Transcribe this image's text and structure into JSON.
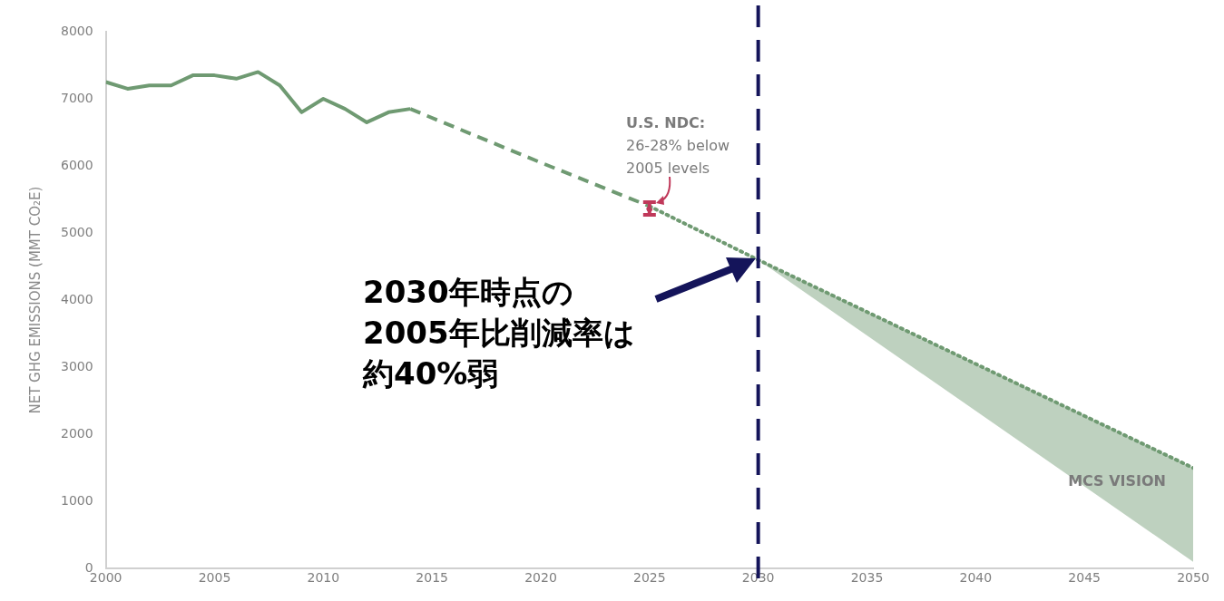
{
  "chart_data": {
    "type": "line",
    "ylabel": "NET GHG EMISSIONS (MMT CO₂E)",
    "xlim": [
      2000,
      2050
    ],
    "ylim": [
      0,
      8000
    ],
    "xticks": [
      2000,
      2005,
      2010,
      2015,
      2020,
      2025,
      2030,
      2035,
      2040,
      2045,
      2050
    ],
    "yticks": [
      0,
      1000,
      2000,
      3000,
      4000,
      5000,
      6000,
      7000,
      8000
    ],
    "grid": false,
    "legend": false,
    "series": [
      {
        "color": "#6f9a72",
        "line_style": "solid",
        "x": [
          2000,
          2001,
          2002,
          2003,
          2004,
          2005,
          2006,
          2007,
          2008,
          2009,
          2010,
          2011,
          2012,
          2013,
          2014
        ],
        "values": [
          7250,
          7150,
          7200,
          7200,
          7350,
          7350,
          7300,
          7400,
          7200,
          6800,
          7000,
          6850,
          6650,
          6800,
          6850
        ]
      },
      {
        "color": "#6f9a72",
        "line_style": "dashed",
        "x": [
          2014,
          2020,
          2025
        ],
        "values": [
          6850,
          6050,
          5400
        ]
      },
      {
        "name": "MCS VISION",
        "color": "#6f9a72",
        "line_style": "dotted",
        "x": [
          2025,
          2030,
          2050
        ],
        "values": [
          5400,
          4600,
          1500
        ],
        "lower": [
          5400,
          4600,
          100
        ],
        "upper": [
          5400,
          4600,
          1500
        ]
      },
      {
        "type": "scatter",
        "color": "#c0395a",
        "x": [
          2025
        ],
        "values": [
          5360
        ],
        "errors": [
          [
            5270,
            5460
          ]
        ]
      }
    ],
    "ref_lines": [
      {
        "axis": "x",
        "value": 2030,
        "color": "#14145a",
        "line_style": "dashed"
      }
    ],
    "annotations": [
      "U.S. NDC:\n26-28% below\n2005 levels",
      "2030年時点の",
      "2005年比削減率は",
      "約40%弱"
    ]
  }
}
